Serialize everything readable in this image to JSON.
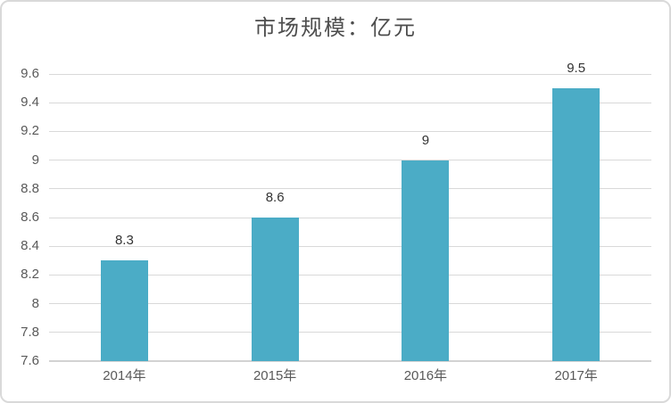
{
  "chart_data": {
    "type": "bar",
    "title": "市场规模：亿元",
    "xlabel": "",
    "ylabel": "",
    "categories": [
      "2014年",
      "2015年",
      "2016年",
      "2017年"
    ],
    "values": [
      8.3,
      8.6,
      9,
      9.5
    ],
    "value_labels": [
      "8.3",
      "8.6",
      "9",
      "9.5"
    ],
    "ylim": [
      7.6,
      9.6
    ],
    "ytick_step": 0.2,
    "ytick_labels": [
      "7.6",
      "7.8",
      "8",
      "8.2",
      "8.4",
      "8.6",
      "8.8",
      "9",
      "9.2",
      "9.4",
      "9.6"
    ],
    "grid": true,
    "legend": false,
    "style": {
      "bar_color": "#4BACC6",
      "gridline_color": "#D9D9D9",
      "axis_line_color": "#D2D2D2",
      "border_color": "#D9D9D9",
      "title_color": "#4D4D4D",
      "tick_label_color": "#595959",
      "value_label_color": "#333333",
      "background": "#FFFFFF"
    }
  }
}
